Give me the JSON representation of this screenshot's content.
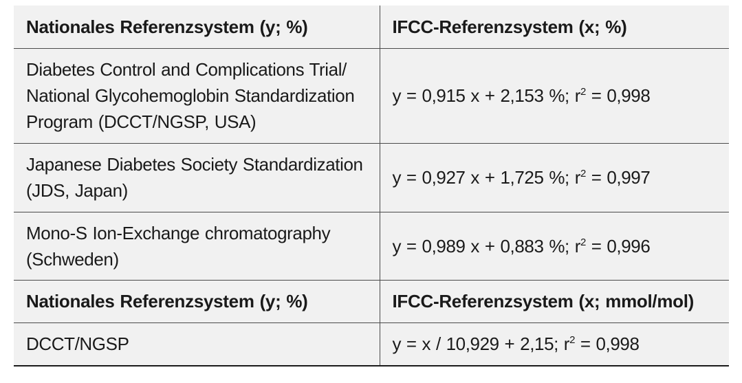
{
  "table": {
    "header1": {
      "col1": "Nationales Referenzsystem (y; %)",
      "col2": "IFCC-Referenzsystem (x; %)"
    },
    "rows": [
      {
        "system_lines": [
          "Diabetes Control and Complications Trial/",
          "National Glycohemoglobin Standardization",
          "Program (DCCT/NGSP, USA)"
        ],
        "equation": "y = 0,915 x + 2,153 %; r",
        "r2": "= 0,998"
      },
      {
        "system_lines": [
          "Japanese Diabetes Society Standardization",
          "(JDS, Japan)"
        ],
        "equation": "y = 0,927 x + 1,725 %; r",
        "r2": "= 0,997"
      },
      {
        "system_lines": [
          "Mono-S Ion-Exchange chromatography",
          "(Schweden)"
        ],
        "equation": "y = 0,989 x + 0,883 %; r",
        "r2": "= 0,996"
      }
    ],
    "header2": {
      "col1": "Nationales Referenzsystem (y; %)",
      "col2": "IFCC-Referenzsystem (x; mmol/mol)"
    },
    "last_row": {
      "system": "DCCT/NGSP",
      "equation": "y = x / 10,929 + 2,15; r",
      "r2": "= 0,998"
    }
  }
}
